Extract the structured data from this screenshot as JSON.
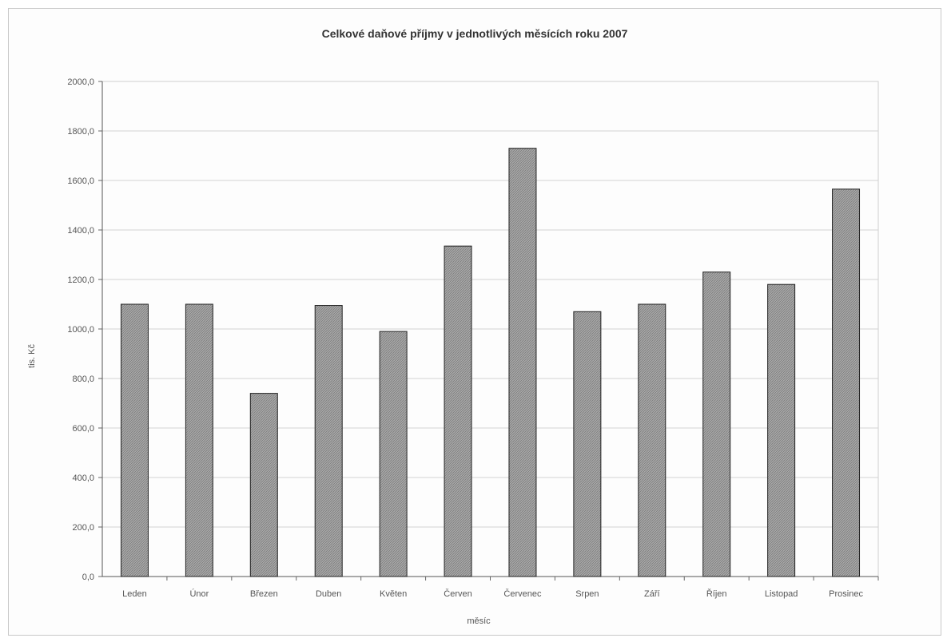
{
  "chart_data": {
    "type": "bar",
    "title": "Celkové daňové příjmy v jednotlivých měsících roku 2007",
    "xlabel": "měsíc",
    "ylabel": "tis. Kč",
    "categories": [
      "Leden",
      "Únor",
      "Březen",
      "Duben",
      "Květen",
      "Červen",
      "Červenec",
      "Srpen",
      "Září",
      "Říjen",
      "Listopad",
      "Prosinec"
    ],
    "values": [
      1100,
      1100,
      740,
      1095,
      990,
      1335,
      1730,
      1070,
      1100,
      1230,
      1180,
      1565
    ],
    "ylim": [
      0,
      2000
    ],
    "yticks": [
      0,
      200,
      400,
      600,
      800,
      1000,
      1200,
      1400,
      1600,
      1800,
      2000
    ],
    "ytick_labels": [
      "0,0",
      "200,0",
      "400,0",
      "600,0",
      "800,0",
      "1000,0",
      "1200,0",
      "1400,0",
      "1600,0",
      "1800,0",
      "2000,0"
    ],
    "grid": true,
    "legend": "none",
    "bar_color": "#9a9a9a"
  }
}
